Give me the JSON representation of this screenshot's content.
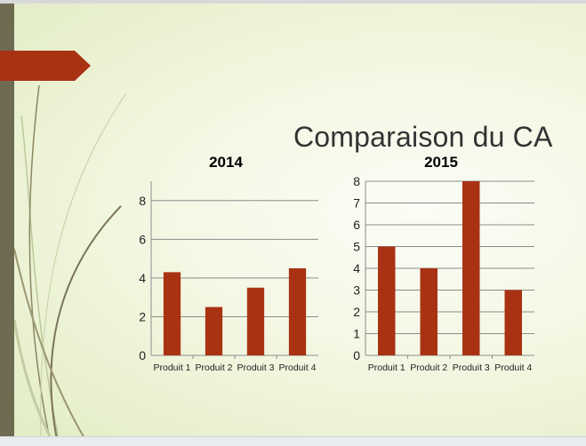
{
  "slide": {
    "title": "Comparaison du CA",
    "colors": {
      "accent": "#a93213",
      "side_bar": "#6f6a52",
      "background": "#eef4d8"
    }
  },
  "chart_data": [
    {
      "type": "bar",
      "title": "2014",
      "xlabel": "",
      "ylabel": "",
      "categories": [
        "Produit 1",
        "Produit 2",
        "Produit 3",
        "Produit 4"
      ],
      "values": [
        4.3,
        2.5,
        3.5,
        4.5
      ],
      "ylim": [
        0,
        9
      ],
      "yticks": [
        0,
        2,
        4,
        6,
        8
      ],
      "grid": true,
      "legend": "none",
      "bar_color": "#a93213"
    },
    {
      "type": "bar",
      "title": "2015",
      "xlabel": "",
      "ylabel": "",
      "categories": [
        "Produit 1",
        "Produit 2",
        "Produit 3",
        "Produit 4"
      ],
      "values": [
        5,
        4,
        8,
        3
      ],
      "ylim": [
        0,
        8
      ],
      "yticks": [
        0,
        1,
        2,
        3,
        4,
        5,
        6,
        7,
        8
      ],
      "grid": true,
      "legend": "none",
      "bar_color": "#a93213"
    }
  ]
}
